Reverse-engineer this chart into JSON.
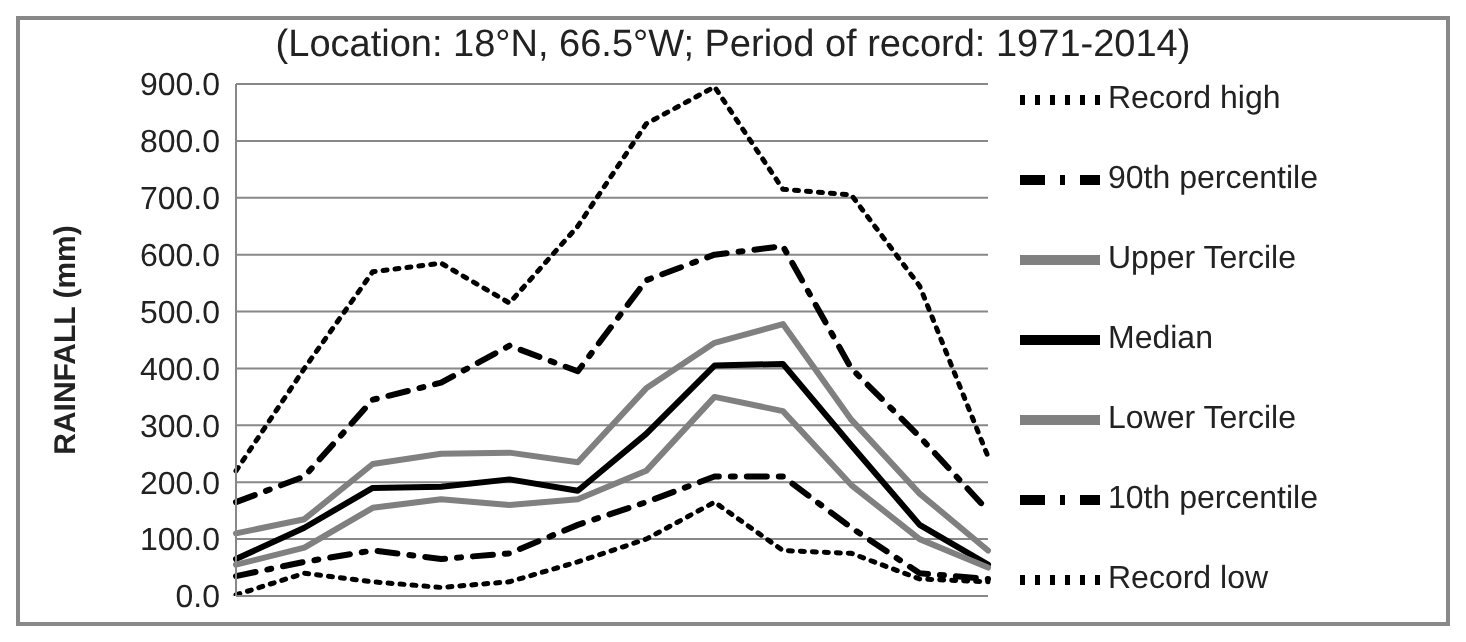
{
  "chart_data": {
    "type": "line",
    "title": "(Location: 18°N, 66.5°W; Period of record: 1971-2014)",
    "ylabel": "RAINFALL (mm)",
    "categories": [
      null,
      null,
      null,
      null,
      null,
      null,
      null,
      null,
      null,
      null,
      null,
      null
    ],
    "series": [
      {
        "name": "Record high",
        "color": "#000000",
        "line_style": "dotted",
        "values": [
          220,
          400,
          570,
          585,
          515,
          650,
          830,
          895,
          715,
          705,
          545,
          245
        ]
      },
      {
        "name": "90th percentile",
        "color": "#000000",
        "line_style": "dashed",
        "values": [
          165,
          210,
          345,
          375,
          440,
          395,
          555,
          600,
          615,
          400,
          280,
          150
        ]
      },
      {
        "name": "Upper Tercile",
        "color": "#808080",
        "line_style": "solid",
        "values": [
          110,
          135,
          232,
          250,
          252,
          235,
          365,
          445,
          478,
          310,
          180,
          80
        ]
      },
      {
        "name": "Median",
        "color": "#000000",
        "line_style": "solid",
        "values": [
          65,
          120,
          190,
          192,
          205,
          185,
          285,
          405,
          408,
          265,
          125,
          55
        ]
      },
      {
        "name": "Lower Tercile",
        "color": "#808080",
        "line_style": "solid",
        "values": [
          55,
          85,
          155,
          170,
          160,
          170,
          220,
          350,
          325,
          195,
          100,
          50
        ]
      },
      {
        "name": "10th percentile",
        "color": "#000000",
        "line_style": "dashed",
        "values": [
          35,
          60,
          80,
          65,
          75,
          125,
          165,
          210,
          210,
          120,
          40,
          30
        ]
      },
      {
        "name": "Record low",
        "color": "#000000",
        "line_style": "dotted",
        "values": [
          2,
          40,
          25,
          15,
          25,
          60,
          100,
          165,
          80,
          75,
          30,
          25
        ]
      }
    ],
    "ylim": [
      0,
      900
    ],
    "yticks": [
      {
        "value": 0,
        "label": "0.0"
      },
      {
        "value": 100,
        "label": "100.0"
      },
      {
        "value": 200,
        "label": "200.0"
      },
      {
        "value": 300,
        "label": "300.0"
      },
      {
        "value": 400,
        "label": "400.0"
      },
      {
        "value": 500,
        "label": "500.0"
      },
      {
        "value": 600,
        "label": "600.0"
      },
      {
        "value": 700,
        "label": "700.0"
      },
      {
        "value": 800,
        "label": "800.0"
      },
      {
        "value": 900,
        "label": "900.0"
      }
    ],
    "grid": "y",
    "legend": "right",
    "marker": "none",
    "tick_labels": "y"
  }
}
